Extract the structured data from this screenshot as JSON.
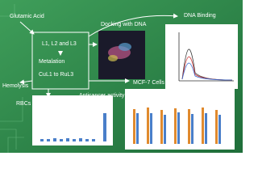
{
  "labels": {
    "glutamic_acid": "Glutamic Acid",
    "ligands": "L1, L2 and L3",
    "metalation": "Metalation",
    "complexes": "CuL1 to RuL3",
    "docking": "Docking with DNA",
    "dna_binding": "DNA Binding",
    "hemolysis": "Hemolysis",
    "rbcs": "RBCs",
    "anticancer": "Anticancer activity",
    "mcf7": "MCF-7 Cells"
  }
}
